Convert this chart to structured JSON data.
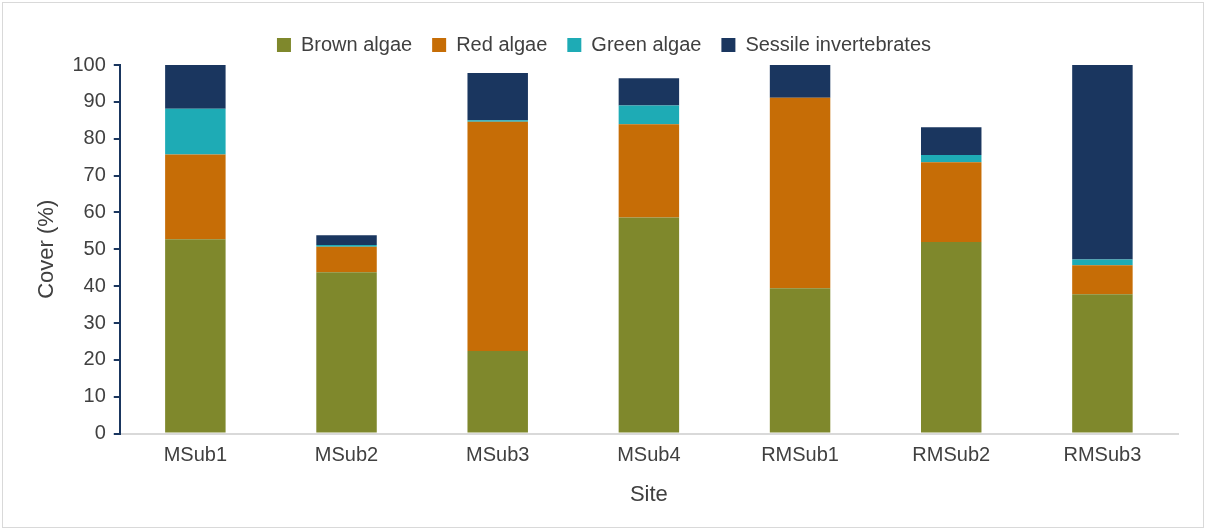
{
  "chart_data": {
    "type": "bar",
    "stacked": true,
    "xlabel": "Site",
    "ylabel": "Cover (%)",
    "categories": [
      "MSub1",
      "MSub2",
      "MSub3",
      "MSub4",
      "RMSub1",
      "RMSub2",
      "RMSub3"
    ],
    "series": [
      {
        "name": "Brown algae",
        "color": "#7f882c",
        "values": [
          52.7,
          43.8,
          22.4,
          58.6,
          39.4,
          52.0,
          37.8
        ]
      },
      {
        "name": "Red algae",
        "color": "#c66d06",
        "values": [
          23.0,
          6.9,
          62.2,
          25.3,
          51.7,
          21.6,
          7.9
        ]
      },
      {
        "name": "Green algae",
        "color": "#1eabb5",
        "values": [
          12.4,
          0.5,
          0.4,
          5.1,
          0,
          2.0,
          1.5
        ]
      },
      {
        "name": "Sessile invertebrates",
        "color": "#1a365f",
        "values": [
          11.9,
          2.6,
          12.8,
          7.4,
          8.9,
          7.5,
          52.8
        ]
      }
    ],
    "ylim": [
      0,
      100
    ],
    "yticks": [
      0,
      10,
      20,
      30,
      40,
      50,
      60,
      70,
      80,
      90,
      100
    ],
    "grid": false,
    "legend": "top"
  }
}
